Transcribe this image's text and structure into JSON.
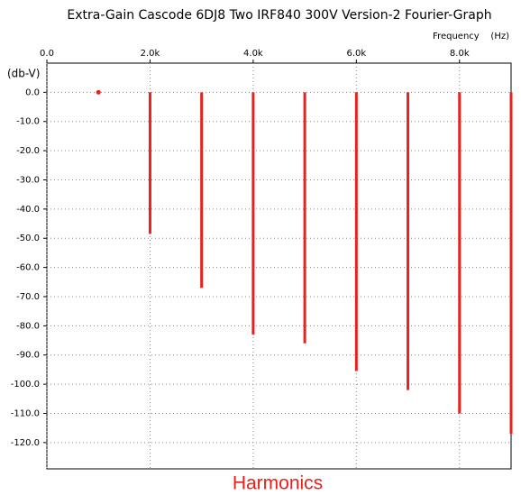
{
  "chart_data": {
    "type": "stem",
    "title": "Extra-Gain Cascode 6DJ8 Two IRF840 300V Version-2 Fourier-Graph",
    "x_label": "Frequency    (Hz)",
    "y_label": "(db-V)",
    "annotation": "Harmonics",
    "x": [
      1000,
      2000,
      3000,
      4000,
      5000,
      6000,
      7000,
      8000,
      9000
    ],
    "values": [
      0,
      -48.5,
      -67,
      -83,
      -86,
      -95.5,
      -102,
      -110,
      -117
    ],
    "color": "#e8211c",
    "xlim": [
      0,
      9000
    ],
    "ylim": [
      -129,
      10
    ],
    "xticks": [
      {
        "value": 0,
        "label": "0.0"
      },
      {
        "value": 2000,
        "label": "2.0k"
      },
      {
        "value": 4000,
        "label": "4.0k"
      },
      {
        "value": 6000,
        "label": "6.0k"
      },
      {
        "value": 8000,
        "label": "8.0k"
      }
    ],
    "yticks": [
      {
        "value": 0,
        "label": "0.0"
      },
      {
        "value": -10,
        "label": "-10.0"
      },
      {
        "value": -20,
        "label": "-20.0"
      },
      {
        "value": -30,
        "label": "-30.0"
      },
      {
        "value": -40,
        "label": "-40.0"
      },
      {
        "value": -50,
        "label": "-50.0"
      },
      {
        "value": -60,
        "label": "-60.0"
      },
      {
        "value": -70,
        "label": "-70.0"
      },
      {
        "value": -80,
        "label": "-80.0"
      },
      {
        "value": -90,
        "label": "-90.0"
      },
      {
        "value": -100,
        "label": "-100.0"
      },
      {
        "value": -110,
        "label": "-110.0"
      },
      {
        "value": -120,
        "label": "-120.0"
      }
    ],
    "grid": true
  }
}
